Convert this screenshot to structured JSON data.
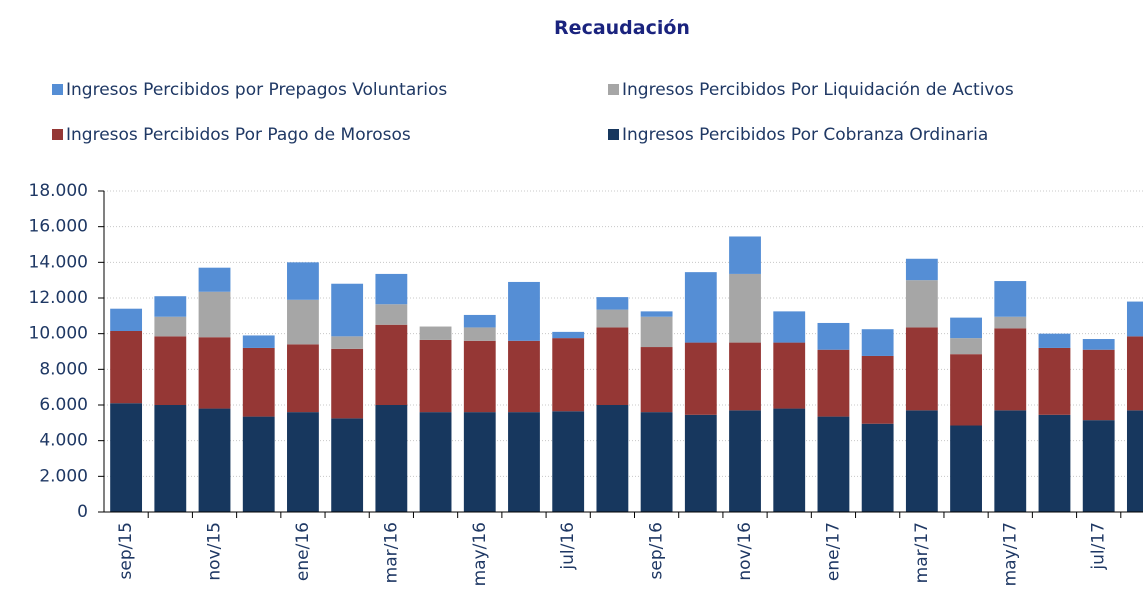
{
  "chart_data": {
    "type": "bar",
    "stacked": true,
    "title": "Recaudación",
    "categories": [
      "sep/15",
      null,
      "nov/15",
      null,
      "ene/16",
      null,
      "mar/16",
      null,
      "may/16",
      null,
      "jul/16",
      null,
      "sep/16",
      null,
      "nov/16",
      null,
      "ene/17",
      null,
      "mar/17",
      null,
      "may/17",
      null,
      "jul/17",
      null
    ],
    "series": [
      {
        "name": "Ingresos Percibidos Por Cobranza Ordinaria",
        "color": "#17375e",
        "values": [
          6100,
          6000,
          5800,
          5350,
          5600,
          5250,
          6000,
          5600,
          5600,
          5600,
          5650,
          6000,
          5600,
          5450,
          5700,
          5800,
          5350,
          4950,
          5700,
          4850,
          5700,
          5450,
          5150,
          5700
        ]
      },
      {
        "name": "Ingresos Percibidos Por Pago de Morosos",
        "color": "#953735",
        "values": [
          4050,
          3850,
          4000,
          3850,
          3800,
          3900,
          4500,
          4050,
          4000,
          4000,
          4100,
          4350,
          3650,
          4050,
          3800,
          3700,
          3750,
          3800,
          4650,
          4000,
          4600,
          3750,
          3950,
          4150
        ]
      },
      {
        "name": "Ingresos Percibidos Por Liquidación de Activos",
        "color": "#a6a6a6",
        "values": [
          0,
          1100,
          2550,
          0,
          2500,
          700,
          1150,
          750,
          750,
          0,
          0,
          1000,
          1700,
          0,
          3850,
          0,
          0,
          0,
          2650,
          900,
          650,
          0,
          0,
          0
        ]
      },
      {
        "name": "Ingresos Percibidos por Prepagos Voluntarios",
        "color": "#558ed5",
        "values": [
          1250,
          1150,
          1350,
          700,
          2100,
          2950,
          1700,
          0,
          700,
          3300,
          350,
          700,
          300,
          3950,
          2100,
          1750,
          1500,
          1500,
          1200,
          1150,
          2000,
          800,
          600,
          1950
        ]
      }
    ],
    "ylim": [
      0,
      18000
    ],
    "yticks": [
      0,
      {
        "value": 2000,
        "label": "2.000"
      },
      {
        "value": 4000,
        "label": "4.000"
      },
      {
        "value": 6000,
        "label": "6.000"
      },
      {
        "value": 8000,
        "label": "8.000"
      },
      {
        "value": 10000,
        "label": "10.000"
      },
      {
        "value": 12000,
        "label": "12.000"
      },
      {
        "value": 14000,
        "label": "14.000"
      },
      {
        "value": 16000,
        "label": "16.000"
      },
      {
        "value": 18000,
        "label": "18.000"
      }
    ],
    "grid": true
  }
}
